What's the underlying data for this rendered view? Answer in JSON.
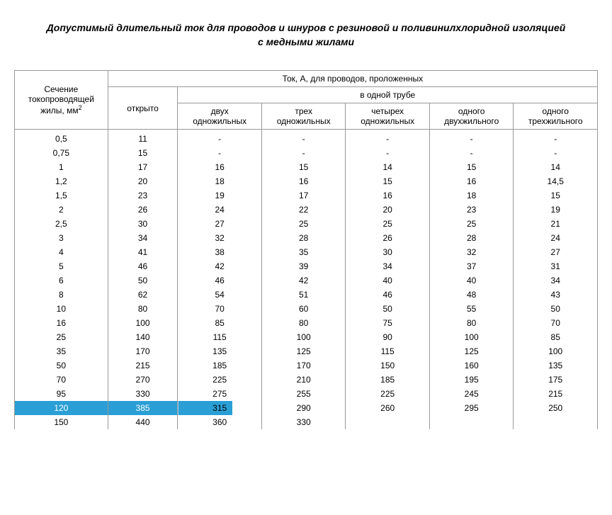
{
  "title": "Допустимый длительный ток для проводов и шнуров с резиновой и поливинилхлоридной изоляцией с медными жилами",
  "headers": {
    "section_line1": "Сечение",
    "section_line2": "токопроводящей",
    "section_line3": "жилы, мм",
    "section_sup": "2",
    "current_group": "Ток, А, для проводов, проложенных",
    "open": "открыто",
    "in_pipe": "в одной трубе",
    "sub1_l1": "двух",
    "sub1_l2": "одножильных",
    "sub2_l1": "трех",
    "sub2_l2": "одножильных",
    "sub3_l1": "четырех",
    "sub3_l2": "одножильных",
    "sub4_l1": "одного",
    "sub4_l2": "двухжильного",
    "sub5_l1": "одного",
    "sub5_l2": "трехжильного"
  },
  "rows": [
    {
      "s": "0,5",
      "o": "11",
      "c1": "-",
      "c2": "-",
      "c3": "-",
      "c4": "-",
      "c5": "-",
      "hl": false
    },
    {
      "s": "0,75",
      "o": "15",
      "c1": "-",
      "c2": "-",
      "c3": "-",
      "c4": "-",
      "c5": "-",
      "hl": false
    },
    {
      "s": "1",
      "o": "17",
      "c1": "16",
      "c2": "15",
      "c3": "14",
      "c4": "15",
      "c5": "14",
      "hl": false
    },
    {
      "s": "1,2",
      "o": "20",
      "c1": "18",
      "c2": "16",
      "c3": "15",
      "c4": "16",
      "c5": "14,5",
      "hl": false
    },
    {
      "s": "1,5",
      "o": "23",
      "c1": "19",
      "c2": "17",
      "c3": "16",
      "c4": "18",
      "c5": "15",
      "hl": false
    },
    {
      "s": "2",
      "o": "26",
      "c1": "24",
      "c2": "22",
      "c3": "20",
      "c4": "23",
      "c5": "19",
      "hl": false
    },
    {
      "s": "2,5",
      "o": "30",
      "c1": "27",
      "c2": "25",
      "c3": "25",
      "c4": "25",
      "c5": "21",
      "hl": false
    },
    {
      "s": "3",
      "o": "34",
      "c1": "32",
      "c2": "28",
      "c3": "26",
      "c4": "28",
      "c5": "24",
      "hl": false
    },
    {
      "s": "4",
      "o": "41",
      "c1": "38",
      "c2": "35",
      "c3": "30",
      "c4": "32",
      "c5": "27",
      "hl": false
    },
    {
      "s": "5",
      "o": "46",
      "c1": "42",
      "c2": "39",
      "c3": "34",
      "c4": "37",
      "c5": "31",
      "hl": false
    },
    {
      "s": "6",
      "o": "50",
      "c1": "46",
      "c2": "42",
      "c3": "40",
      "c4": "40",
      "c5": "34",
      "hl": false
    },
    {
      "s": "8",
      "o": "62",
      "c1": "54",
      "c2": "51",
      "c3": "46",
      "c4": "48",
      "c5": "43",
      "hl": false
    },
    {
      "s": "10",
      "o": "80",
      "c1": "70",
      "c2": "60",
      "c3": "50",
      "c4": "55",
      "c5": "50",
      "hl": false
    },
    {
      "s": "16",
      "o": "100",
      "c1": "85",
      "c2": "80",
      "c3": "75",
      "c4": "80",
      "c5": "70",
      "hl": false
    },
    {
      "s": "25",
      "o": "140",
      "c1": "115",
      "c2": "100",
      "c3": "90",
      "c4": "100",
      "c5": "85",
      "hl": false
    },
    {
      "s": "35",
      "o": "170",
      "c1": "135",
      "c2": "125",
      "c3": "115",
      "c4": "125",
      "c5": "100",
      "hl": false
    },
    {
      "s": "50",
      "o": "215",
      "c1": "185",
      "c2": "170",
      "c3": "150",
      "c4": "160",
      "c5": "135",
      "hl": false
    },
    {
      "s": "70",
      "o": "270",
      "c1": "225",
      "c2": "210",
      "c3": "185",
      "c4": "195",
      "c5": "175",
      "hl": false
    },
    {
      "s": "95",
      "o": "330",
      "c1": "275",
      "c2": "255",
      "c3": "225",
      "c4": "245",
      "c5": "215",
      "hl": false
    },
    {
      "s": "120",
      "o": "385",
      "c1": "315",
      "c2": "290",
      "c3": "260",
      "c4": "295",
      "c5": "250",
      "hl": true
    },
    {
      "s": "150",
      "o": "440",
      "c1": "360",
      "c2": "330",
      "c3": "",
      "c4": "",
      "c5": "",
      "hl": false
    }
  ],
  "style": {
    "highlight_color": "#2a9fd6",
    "border_color": "#999999",
    "font_family": "Arial",
    "title_fontsize": 14,
    "body_fontsize": 12
  }
}
